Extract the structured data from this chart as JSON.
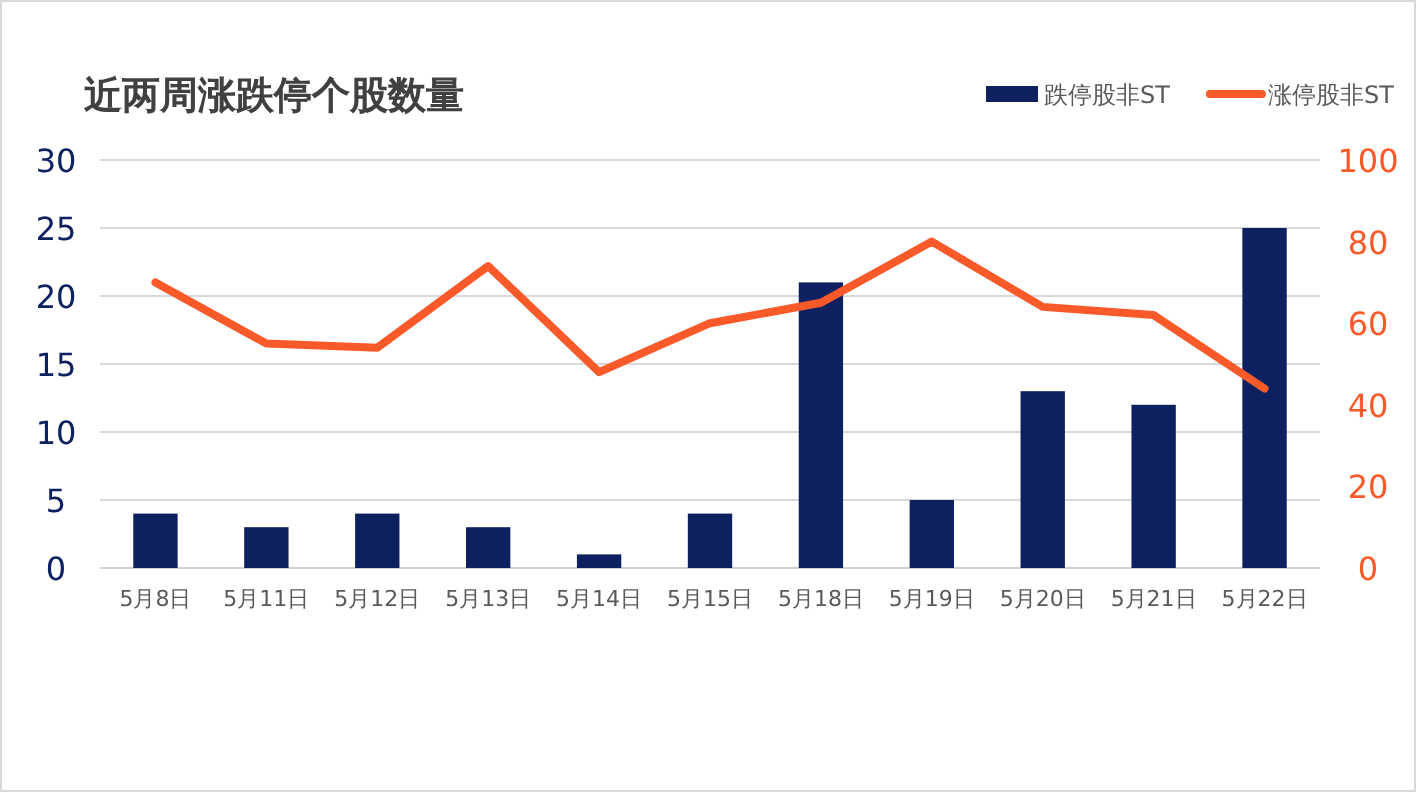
{
  "chart_data": {
    "type": "bar",
    "title": "近两周涨跌停个股数量",
    "categories": [
      "5月8日",
      "5月11日",
      "5月12日",
      "5月13日",
      "5月14日",
      "5月15日",
      "5月18日",
      "5月19日",
      "5月20日",
      "5月21日",
      "5月22日"
    ],
    "series": [
      {
        "name": "跌停股非ST",
        "color": "#0d2160",
        "values": [
          4,
          3,
          4,
          3,
          1,
          4,
          21,
          5,
          13,
          12,
          25
        ]
      },
      {
        "name": "涨停股非ST",
        "color": "#fa5a2a",
        "type": "line",
        "axis": "y2",
        "values": [
          70,
          55,
          54,
          74,
          48,
          60,
          65,
          80,
          64,
          62,
          44
        ]
      }
    ],
    "ylim": [
      0,
      30
    ],
    "yticks": [
      0,
      5,
      10,
      15,
      20,
      25,
      30
    ],
    "y2lim": [
      0,
      100
    ],
    "y2ticks": [
      0,
      20,
      40,
      60,
      80,
      100
    ],
    "grid": "y",
    "legend": "top right"
  }
}
